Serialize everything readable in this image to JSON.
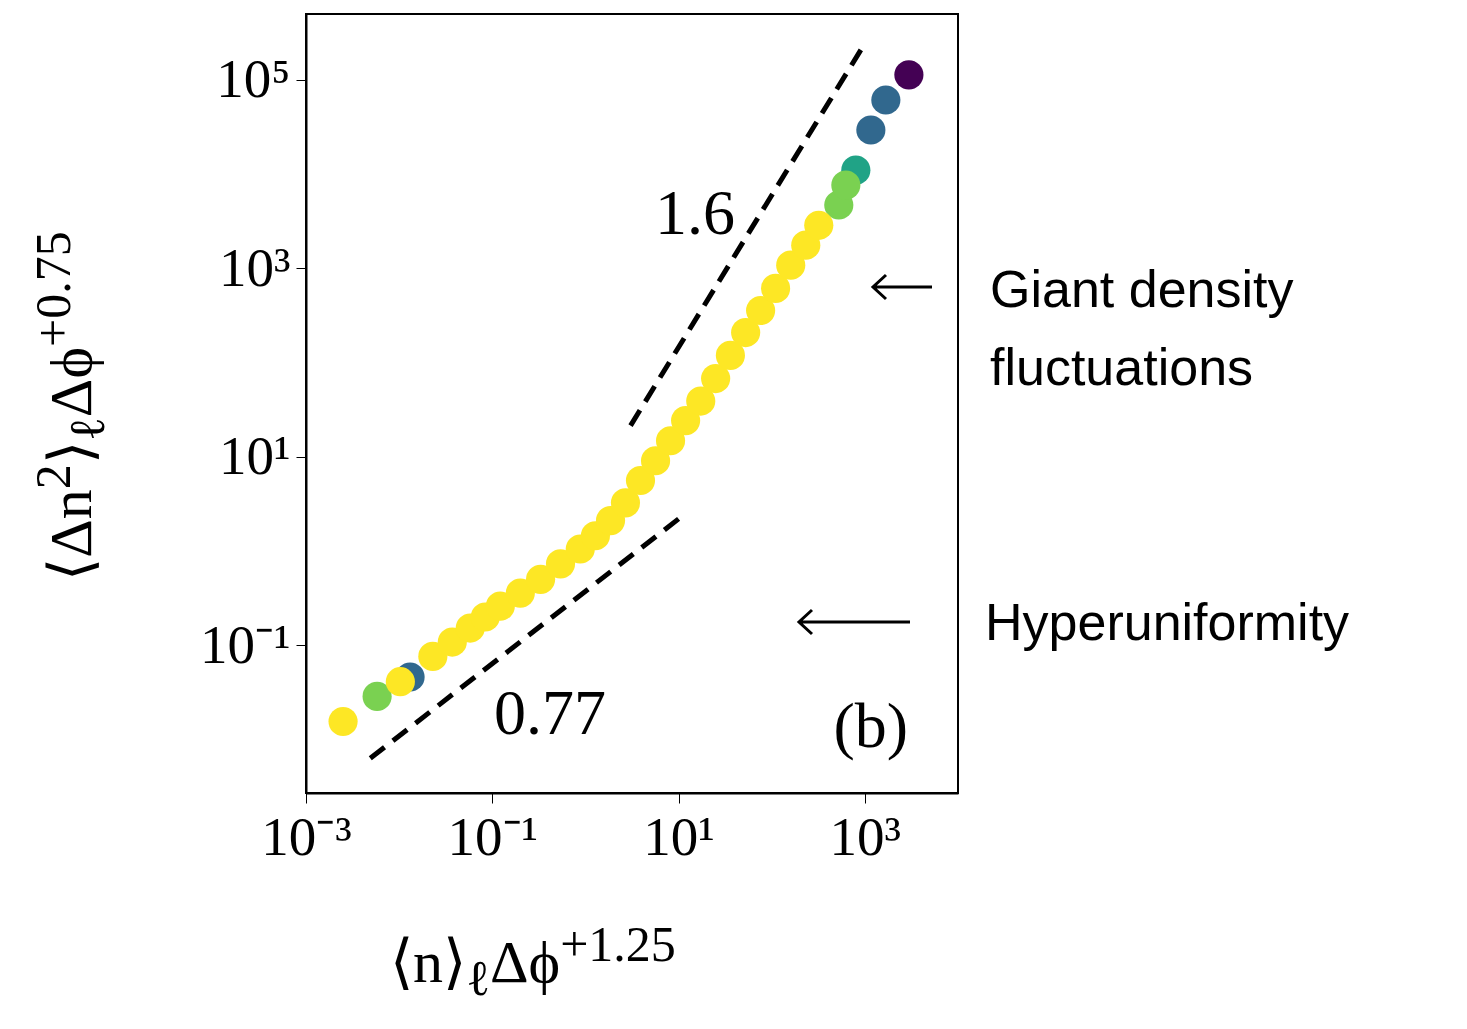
{
  "chart_data": {
    "type": "scatter",
    "xlabel": "⟨n⟩$_{ℓ}$Δϕ$^{+1.25}$",
    "ylabel": "⟨Δn$^{2}$⟩$_{ℓ}$Δϕ$^{+0.75}$",
    "log": "xy",
    "grid": false,
    "xlim": [
      0.001,
      10000
    ],
    "ylim": [
      0.0027,
      500000
    ],
    "xticks": [
      {
        "value": 0.001,
        "label": "10⁻³"
      },
      {
        "value": 0.1,
        "label": "10⁻¹"
      },
      {
        "value": 10,
        "label": "10¹"
      },
      {
        "value": 1000,
        "label": "10³"
      }
    ],
    "yticks": [
      {
        "value": 0.1,
        "label": "10⁻¹"
      },
      {
        "value": 10,
        "label": "10¹"
      },
      {
        "value": 1000,
        "label": "10³"
      },
      {
        "value": 100000,
        "label": "10⁵"
      }
    ],
    "series": [
      {
        "color": "#440154",
        "marker": "circle",
        "x": [
          2970
        ],
        "values": [
          113000
        ]
      },
      {
        "color": "#31688e",
        "marker": "circle",
        "x": [
          0.0131,
          1160,
          1680
        ],
        "values": [
          0.046,
          29400,
          61200
        ]
      },
      {
        "color": "#20a386",
        "marker": "circle",
        "x": [
          800
        ],
        "values": [
          11000
        ]
      },
      {
        "color": "#7ad151",
        "marker": "circle",
        "x": [
          0.0058,
          525,
          625
        ],
        "values": [
          0.0286,
          4700,
          7640
        ]
      },
      {
        "color": "#fde725",
        "marker": "circle",
        "x": [
          0.0025,
          0.0103,
          0.023,
          0.0372,
          0.058,
          0.084,
          0.122,
          0.2,
          0.33,
          0.54,
          0.88,
          1.28,
          1.86,
          2.69,
          3.9,
          5.66,
          8.2,
          11.9,
          17.3,
          25,
          36,
          52.5,
          76,
          110,
          160,
          232,
          320
        ],
        "values": [
          0.0155,
          0.041,
          0.076,
          0.108,
          0.152,
          0.199,
          0.26,
          0.357,
          0.5,
          0.73,
          1.05,
          1.45,
          2.1,
          3.24,
          5.6,
          9.06,
          14.8,
          24.2,
          39,
          67.6,
          119,
          208,
          357,
          612,
          1080,
          1760,
          2860
        ]
      },
      {
        "type": "line",
        "color": "#000000",
        "line_style": "dashed",
        "x": [
          3.05,
          906
        ],
        "values": [
          21.4,
          208000
        ]
      },
      {
        "type": "line",
        "color": "#000000",
        "line_style": "dashed",
        "x": [
          0.0049,
          10
        ],
        "values": [
          0.0063,
          2.19
        ]
      }
    ],
    "annotations": [
      "(b)",
      "1.6",
      "0.77",
      "Giant density fluctuations",
      "Hyperuniformity"
    ]
  }
}
